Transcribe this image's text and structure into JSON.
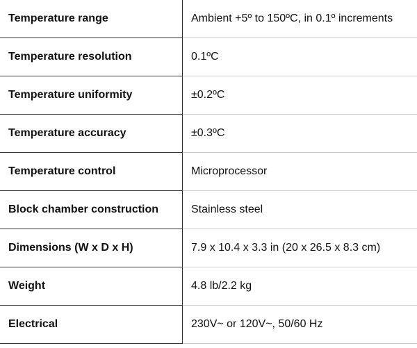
{
  "table": {
    "rows": [
      [
        "Temperature range",
        "Ambient +5º to 150ºC, in 0.1º increments"
      ],
      [
        "Temperature resolution",
        "0.1ºC"
      ],
      [
        "Temperature uniformity",
        "±0.2ºC"
      ],
      [
        "Temperature accuracy",
        "±0.3ºC"
      ],
      [
        "Temperature control",
        "Microprocessor"
      ],
      [
        "Block chamber construction",
        "Stainless steel"
      ],
      [
        "Dimensions (W x D x H)",
        "7.9 x 10.4 x 3.3 in (20 x 26.5 x 8.3 cm)"
      ],
      [
        "Weight",
        "4.8 lb/2.2 kg"
      ],
      [
        "Electrical",
        "230V~ or 120V~, 50/60 Hz"
      ]
    ]
  }
}
